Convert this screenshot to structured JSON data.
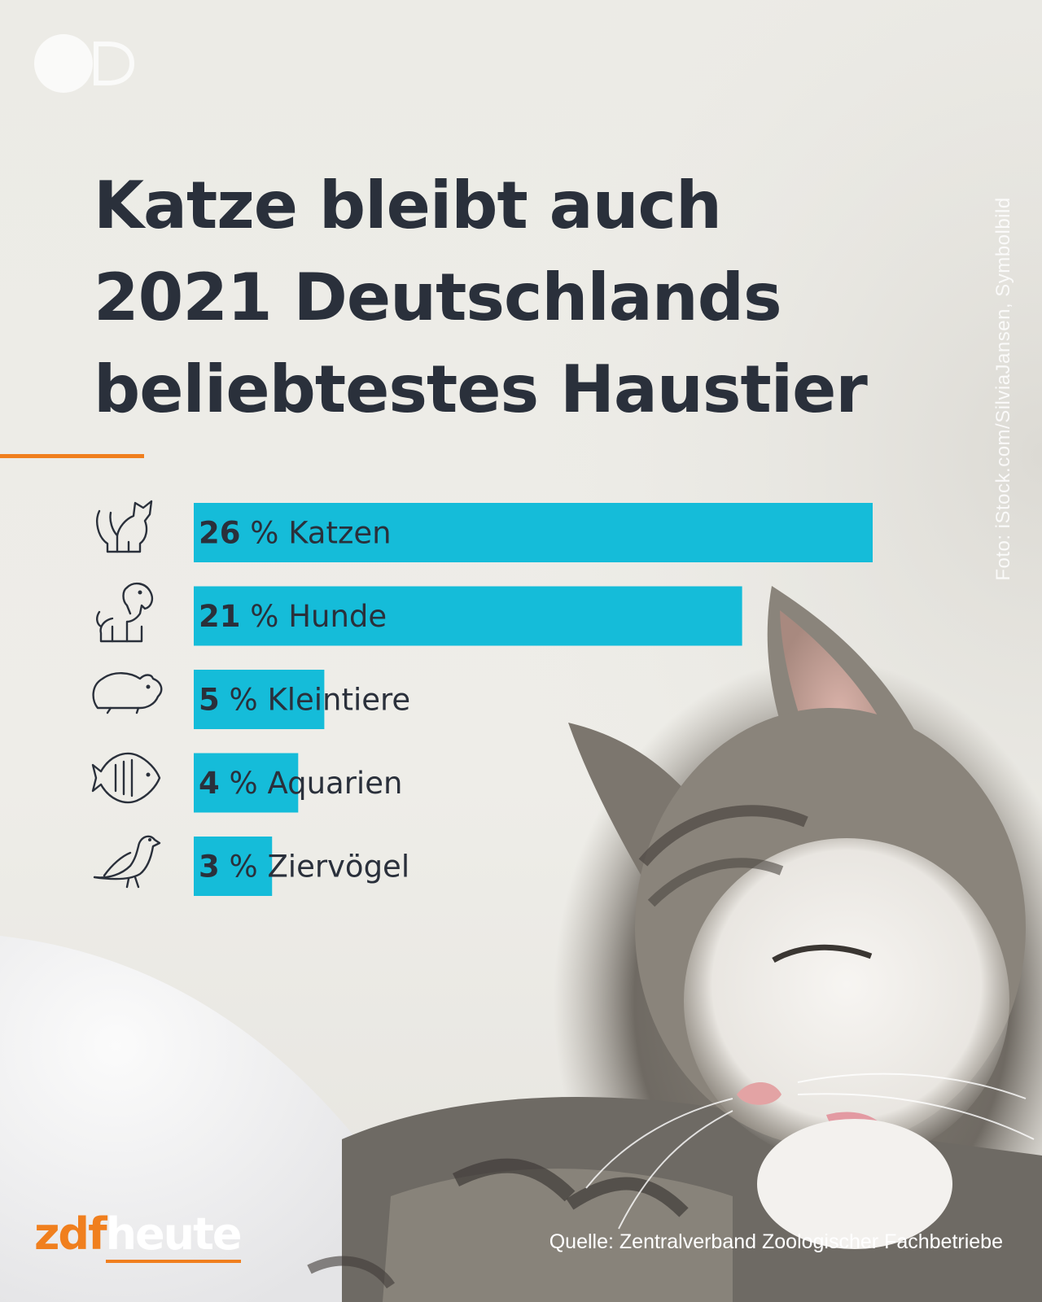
{
  "headline": {
    "lines": [
      "Katze bleibt auch",
      "2021 Deutschlands",
      "beliebtestes Haustier"
    ]
  },
  "photo_credit": "Foto: iStock.com/SilviaJansen, Symbolbild",
  "brand": {
    "zdf": "zdf",
    "heute": "heute",
    "accent_color": "#f07f1e"
  },
  "source": "Quelle: Zentralverband Zoologischer Fachbetriebe",
  "chart_data": {
    "type": "bar",
    "orientation": "horizontal",
    "unit": "%",
    "bar_color": "#15bcd9",
    "xlim": [
      0,
      26
    ],
    "series": [
      {
        "values": [
          26,
          21,
          5,
          4,
          3
        ],
        "categories": [
          "Katzen",
          "Hunde",
          "Kleintiere",
          "Aquarien",
          "Ziervögel"
        ],
        "labels": [
          "26 %",
          "21 %",
          "5 %",
          "4 %",
          "3 %"
        ],
        "icons": [
          "cat-icon",
          "dog-icon",
          "hamster-icon",
          "fish-icon",
          "bird-icon"
        ]
      }
    ]
  }
}
